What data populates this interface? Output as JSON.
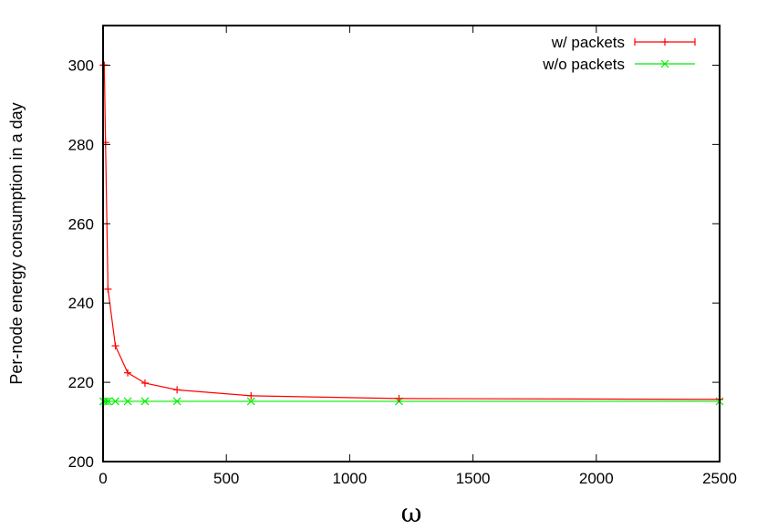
{
  "chart_data": {
    "type": "line",
    "xlabel": "ω",
    "ylabel": "Per-node energy consumption in a day",
    "xlim": [
      0,
      2500
    ],
    "ylim": [
      200,
      310
    ],
    "x_ticks": [
      0,
      500,
      1000,
      1500,
      2000,
      2500
    ],
    "y_ticks": [
      200,
      220,
      240,
      260,
      280,
      300
    ],
    "grid": false,
    "legend": "top-right",
    "series": [
      {
        "name": "w/ packets",
        "color": "#ff0000",
        "marker": "plus",
        "error_bars": true,
        "x": [
          1,
          2,
          5,
          10,
          20,
          50,
          100,
          170,
          300,
          600,
          1200,
          2500
        ],
        "y": [
          300,
          300,
          300,
          280.5,
          243.5,
          229.2,
          222.4,
          219.8,
          218.1,
          216.6,
          215.9,
          215.7
        ]
      },
      {
        "name": "w/o packets",
        "color": "#00ee00",
        "marker": "x",
        "error_bars": false,
        "x": [
          1,
          10,
          20,
          50,
          100,
          170,
          300,
          600,
          1200,
          2500
        ],
        "y": [
          215.2,
          215.2,
          215.2,
          215.2,
          215.2,
          215.2,
          215.2,
          215.2,
          215.2,
          215.2
        ]
      }
    ]
  }
}
